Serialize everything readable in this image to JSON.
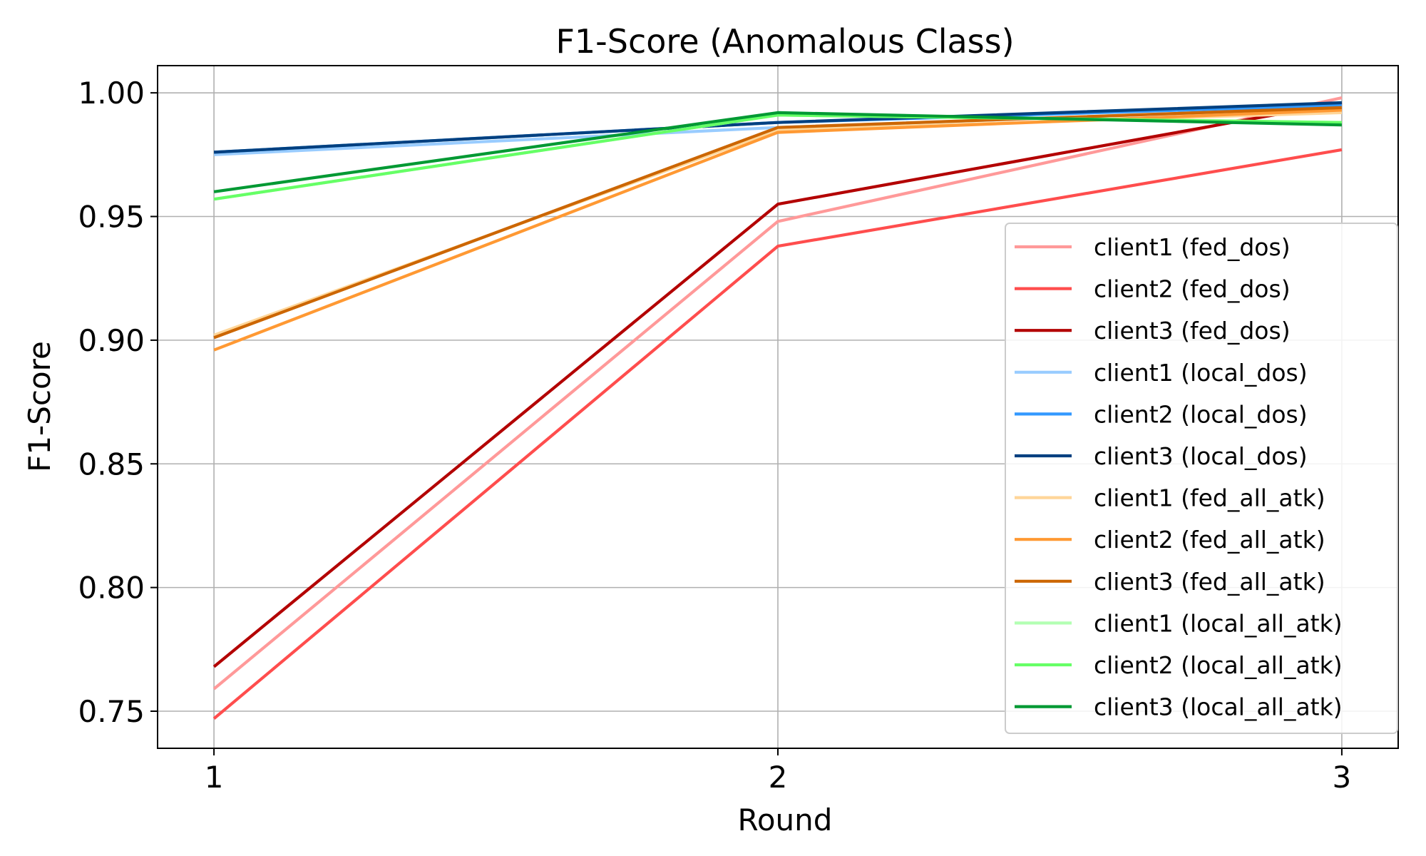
{
  "chart_data": {
    "type": "line",
    "title": "F1-Score (Anomalous Class)",
    "xlabel": "Round",
    "ylabel": "F1-Score",
    "x": [
      1,
      2,
      3
    ],
    "xlim": [
      0.9,
      3.1
    ],
    "ylim": [
      0.735,
      1.011
    ],
    "xticks": [
      1,
      2,
      3
    ],
    "yticks": [
      0.75,
      0.8,
      0.85,
      0.9,
      0.95,
      1.0
    ],
    "ytick_labels": [
      "0.75",
      "0.80",
      "0.85",
      "0.90",
      "0.95",
      "1.00"
    ],
    "grid": true,
    "legend_position": "lower-right",
    "series": [
      {
        "name": "client1 (fed_dos)",
        "color": "#ff9999",
        "values": [
          0.759,
          0.948,
          0.998
        ]
      },
      {
        "name": "client2 (fed_dos)",
        "color": "#ff4d4d",
        "values": [
          0.747,
          0.938,
          0.977
        ]
      },
      {
        "name": "client3 (fed_dos)",
        "color": "#b30000",
        "values": [
          0.768,
          0.955,
          0.996
        ]
      },
      {
        "name": "client1 (local_dos)",
        "color": "#99ccff",
        "values": [
          0.975,
          0.986,
          0.994
        ]
      },
      {
        "name": "client2 (local_dos)",
        "color": "#3399ff",
        "values": [
          0.976,
          0.988,
          0.995
        ]
      },
      {
        "name": "client3 (local_dos)",
        "color": "#004080",
        "values": [
          0.976,
          0.988,
          0.996
        ]
      },
      {
        "name": "client1 (fed_all_atk)",
        "color": "#ffd699",
        "values": [
          0.902,
          0.985,
          0.992
        ]
      },
      {
        "name": "client2 (fed_all_atk)",
        "color": "#ff9933",
        "values": [
          0.896,
          0.984,
          0.993
        ]
      },
      {
        "name": "client3 (fed_all_atk)",
        "color": "#cc6600",
        "values": [
          0.901,
          0.986,
          0.994
        ]
      },
      {
        "name": "client1 (local_all_atk)",
        "color": "#b3ffb3",
        "values": [
          0.957,
          0.991,
          0.988
        ]
      },
      {
        "name": "client2 (local_all_atk)",
        "color": "#66ff66",
        "values": [
          0.957,
          0.991,
          0.988
        ]
      },
      {
        "name": "client3 (local_all_atk)",
        "color": "#009933",
        "values": [
          0.96,
          0.992,
          0.987
        ]
      }
    ]
  }
}
